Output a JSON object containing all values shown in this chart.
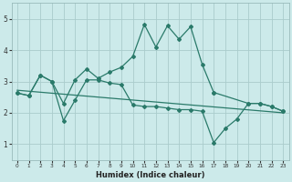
{
  "xlabel": "Humidex (Indice chaleur)",
  "bg_color": "#cceaea",
  "grid_color": "#aacccc",
  "line_color": "#2a7a6a",
  "xlim": [
    -0.5,
    23.5
  ],
  "ylim": [
    0.5,
    5.5
  ],
  "yticks": [
    1,
    2,
    3,
    4,
    5
  ],
  "xticks": [
    0,
    1,
    2,
    3,
    4,
    5,
    6,
    7,
    8,
    9,
    10,
    11,
    12,
    13,
    14,
    15,
    16,
    17,
    18,
    19,
    20,
    21,
    22,
    23
  ],
  "series1_x": [
    0,
    1,
    2,
    3,
    4,
    5,
    6,
    7,
    8,
    9,
    10,
    11,
    12,
    13,
    14,
    15,
    16,
    17
  ],
  "series1_y": [
    2.63,
    2.55,
    3.2,
    3.0,
    2.3,
    3.05,
    3.4,
    3.1,
    3.3,
    3.45,
    3.8,
    4.82,
    4.1,
    4.78,
    4.35,
    4.75,
    3.55,
    2.65
  ],
  "series2_x": [
    0,
    1,
    2,
    3,
    4,
    5,
    6,
    7,
    8,
    9,
    10,
    11,
    12,
    13,
    14,
    15,
    16,
    17,
    18,
    19,
    20,
    21,
    22,
    23
  ],
  "series2_y": [
    2.63,
    2.55,
    3.2,
    3.0,
    1.75,
    2.4,
    3.05,
    3.05,
    2.95,
    2.9,
    2.25,
    2.2,
    2.2,
    2.15,
    2.1,
    2.1,
    2.05,
    1.05,
    1.5,
    1.8,
    2.3,
    2.3,
    2.2,
    2.05
  ],
  "series3_x": [
    0,
    23
  ],
  "series3_y": [
    2.72,
    2.0
  ],
  "series4_x": [
    17,
    20,
    21,
    22,
    23
  ],
  "series4_y": [
    2.65,
    2.3,
    2.3,
    2.2,
    2.05
  ]
}
